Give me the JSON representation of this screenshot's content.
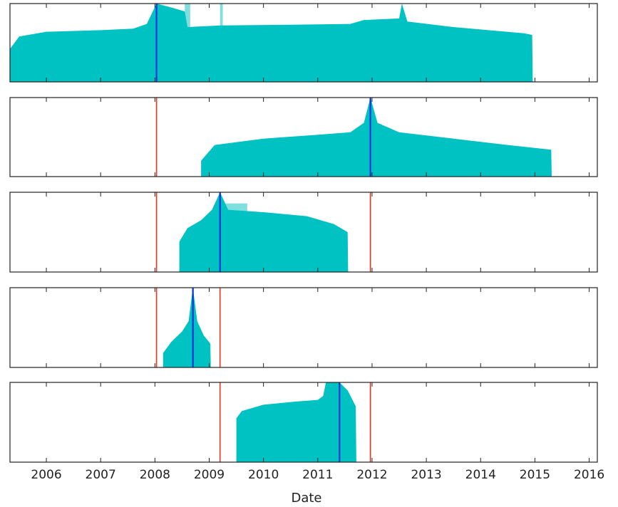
{
  "chart_data": {
    "type": "area",
    "xlabel": "Date",
    "x_ticks": [
      "2006",
      "2007",
      "2008",
      "2009",
      "2010",
      "2011",
      "2012",
      "2013",
      "2014",
      "2015",
      "2016"
    ],
    "xlim": [
      2005.33,
      2016.15
    ],
    "colors": {
      "fill": "#00c2c2",
      "fill_light": "#7fdede",
      "event": "#0033dd",
      "marker": "#ee3322"
    },
    "panels": [
      {
        "event": 2008.03,
        "markers": [],
        "points": [
          [
            2005.33,
            0.42
          ],
          [
            2005.5,
            0.58
          ],
          [
            2006.0,
            0.64
          ],
          [
            2007.0,
            0.66
          ],
          [
            2007.6,
            0.68
          ],
          [
            2007.85,
            0.74
          ],
          [
            2008.03,
            1.0
          ],
          [
            2008.3,
            0.95
          ],
          [
            2008.55,
            0.9
          ],
          [
            2008.6,
            0.7
          ],
          [
            2009.2,
            0.72
          ],
          [
            2010.5,
            0.73
          ],
          [
            2011.6,
            0.74
          ],
          [
            2011.85,
            0.79
          ],
          [
            2012.5,
            0.81
          ],
          [
            2012.55,
            1.0
          ],
          [
            2012.65,
            0.77
          ],
          [
            2013.5,
            0.7
          ],
          [
            2014.8,
            0.62
          ],
          [
            2014.95,
            0.6
          ],
          [
            2014.96,
            0.0
          ]
        ],
        "light": [
          [
            2008.55,
            2008.65,
            1.0
          ],
          [
            2009.2,
            2009.25,
            1.0
          ]
        ]
      },
      {
        "event": 2011.97,
        "markers": [
          2008.03
        ],
        "points": [
          [
            2008.85,
            0.2
          ],
          [
            2009.1,
            0.4
          ],
          [
            2010.0,
            0.48
          ],
          [
            2011.0,
            0.53
          ],
          [
            2011.6,
            0.56
          ],
          [
            2011.85,
            0.68
          ],
          [
            2011.97,
            1.0
          ],
          [
            2012.1,
            0.68
          ],
          [
            2012.5,
            0.56
          ],
          [
            2013.5,
            0.48
          ],
          [
            2014.5,
            0.4
          ],
          [
            2015.3,
            0.34
          ],
          [
            2015.31,
            0.0
          ]
        ],
        "light": []
      },
      {
        "event": 2009.2,
        "markers": [
          2008.03,
          2011.97
        ],
        "points": [
          [
            2008.45,
            0.38
          ],
          [
            2008.6,
            0.55
          ],
          [
            2008.85,
            0.65
          ],
          [
            2009.05,
            0.78
          ],
          [
            2009.2,
            1.0
          ],
          [
            2009.35,
            0.78
          ],
          [
            2010.0,
            0.75
          ],
          [
            2010.8,
            0.7
          ],
          [
            2011.3,
            0.6
          ],
          [
            2011.55,
            0.5
          ],
          [
            2011.56,
            0.0
          ]
        ],
        "light": [
          [
            2009.3,
            2009.7,
            0.86
          ]
        ]
      },
      {
        "event": 2008.7,
        "markers": [
          2008.03,
          2009.2
        ],
        "points": [
          [
            2008.15,
            0.18
          ],
          [
            2008.3,
            0.32
          ],
          [
            2008.5,
            0.45
          ],
          [
            2008.62,
            0.58
          ],
          [
            2008.7,
            1.0
          ],
          [
            2008.78,
            0.58
          ],
          [
            2008.9,
            0.4
          ],
          [
            2009.02,
            0.3
          ],
          [
            2009.03,
            0.0
          ]
        ],
        "light": []
      },
      {
        "event": 2011.4,
        "markers": [
          2009.2,
          2011.97
        ],
        "points": [
          [
            2009.5,
            0.55
          ],
          [
            2009.6,
            0.64
          ],
          [
            2010.0,
            0.72
          ],
          [
            2010.6,
            0.76
          ],
          [
            2011.0,
            0.78
          ],
          [
            2011.1,
            0.83
          ],
          [
            2011.15,
            1.0
          ],
          [
            2011.4,
            1.0
          ],
          [
            2011.55,
            0.9
          ],
          [
            2011.7,
            0.7
          ],
          [
            2011.71,
            0.0
          ]
        ],
        "light": []
      }
    ]
  }
}
